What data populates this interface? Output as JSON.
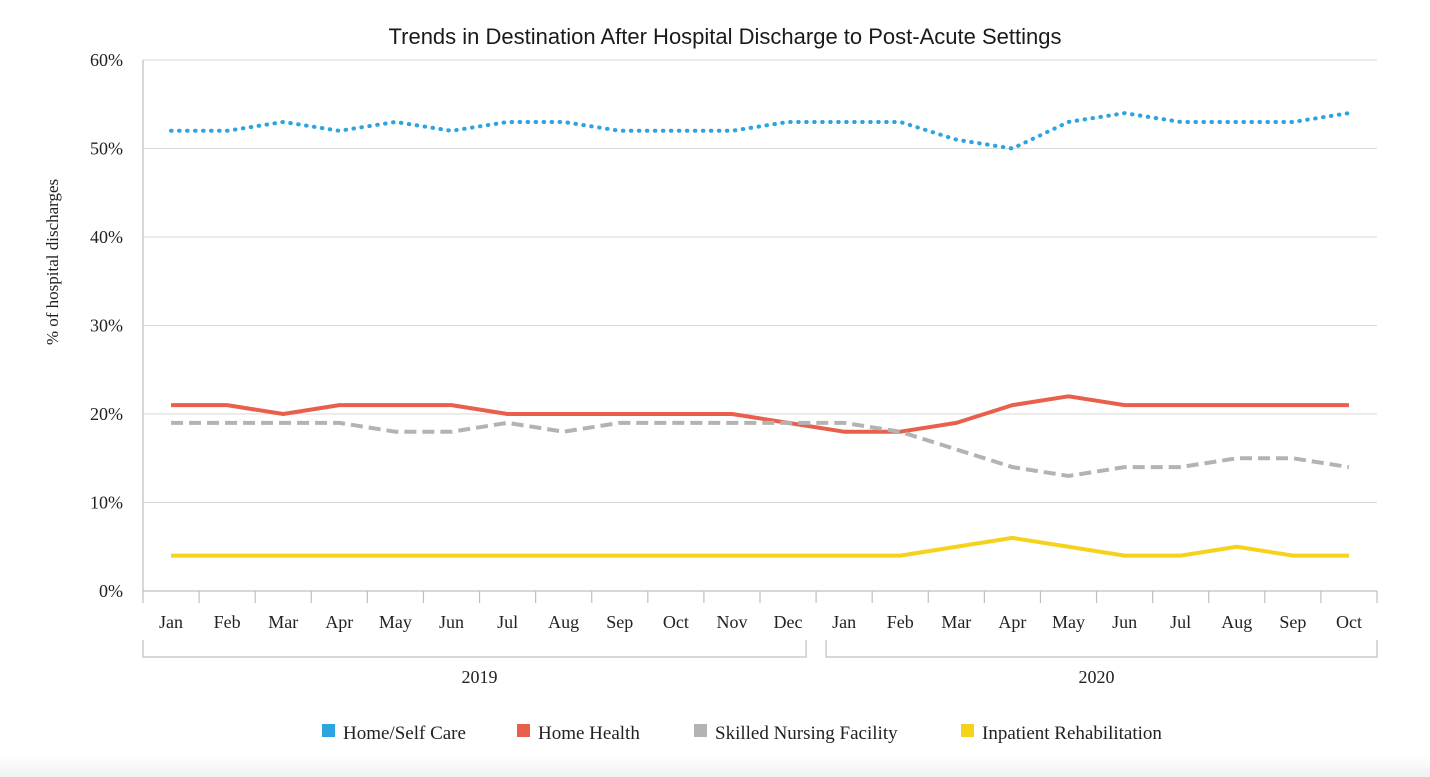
{
  "chart_data": {
    "type": "line",
    "title": "Trends in Destination After Hospital Discharge to Post-Acute Settings",
    "ylabel": "% of hospital discharges",
    "ylim": [
      0,
      60
    ],
    "yticks": [
      "0%",
      "10%",
      "20%",
      "30%",
      "40%",
      "50%",
      "60%"
    ],
    "ytick_values": [
      0,
      10,
      20,
      30,
      40,
      50,
      60
    ],
    "categories": [
      "Jan",
      "Feb",
      "Mar",
      "Apr",
      "May",
      "Jun",
      "Jul",
      "Aug",
      "Sep",
      "Oct",
      "Nov",
      "Dec",
      "Jan",
      "Feb",
      "Mar",
      "Apr",
      "May",
      "Jun",
      "Jul",
      "Aug",
      "Sep",
      "Oct"
    ],
    "groups": [
      {
        "label": "2019",
        "start": 0,
        "end": 11
      },
      {
        "label": "2020",
        "start": 12,
        "end": 21
      }
    ],
    "grid": true,
    "legend_position": "bottom",
    "series": [
      {
        "name": "Home/Self Care",
        "color": "#2da4e0",
        "style": "dotted",
        "values": [
          52,
          52,
          53,
          52,
          53,
          52,
          53,
          53,
          52,
          52,
          52,
          53,
          53,
          53,
          51,
          50,
          53,
          54,
          53,
          53,
          53,
          54
        ]
      },
      {
        "name": "Home Health",
        "color": "#e8604c",
        "style": "solid",
        "values": [
          21,
          21,
          20,
          21,
          21,
          21,
          20,
          20,
          20,
          20,
          20,
          19,
          18,
          18,
          19,
          21,
          22,
          21,
          21,
          21,
          21,
          21
        ]
      },
      {
        "name": "Skilled Nursing Facility",
        "color": "#b3b3b3",
        "style": "dashed",
        "values": [
          19,
          19,
          19,
          19,
          18,
          18,
          19,
          18,
          19,
          19,
          19,
          19,
          19,
          18,
          16,
          14,
          13,
          14,
          14,
          15,
          15,
          14
        ]
      },
      {
        "name": "Inpatient Rehabilitation",
        "color": "#f5d21c",
        "style": "solid",
        "values": [
          4,
          4,
          4,
          4,
          4,
          4,
          4,
          4,
          4,
          4,
          4,
          4,
          4,
          4,
          5,
          6,
          5,
          4,
          4,
          5,
          4,
          4
        ]
      }
    ]
  }
}
